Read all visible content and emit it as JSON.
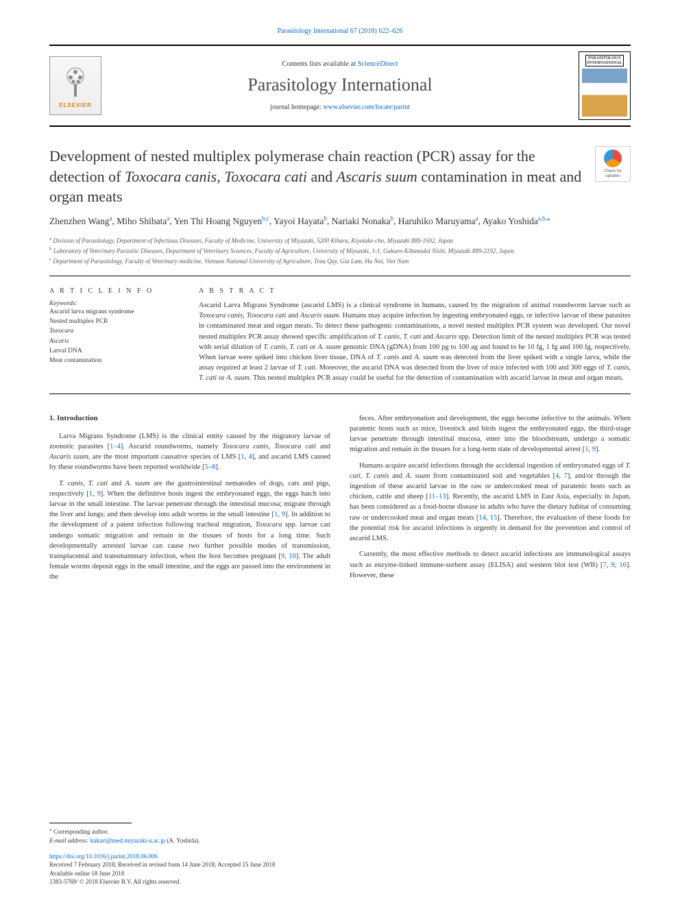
{
  "topRef": {
    "journal": "Parasitology International 67 (2018) 622–626",
    "href": "#"
  },
  "header": {
    "contentsPrefix": "Contents lists available at ",
    "contentsLink": "ScienceDirect",
    "journalName": "Parasitology International",
    "homepagePrefix": "journal homepage: ",
    "homepageLink": "www.elsevier.com/locate/parint",
    "elsevierLabel": "ELSEVIER",
    "coverBadgeTop": "PARASITOLOGY",
    "coverBadgeBottom": "INTERNATIONAL"
  },
  "checkUpdates": {
    "line1": "Check for",
    "line2": "updates"
  },
  "title": {
    "pre": "Development of nested multiplex polymerase chain reaction (PCR) assay for the detection of ",
    "em1": "Toxocara canis",
    "mid1": ", ",
    "em2": "Toxocara cati",
    "mid2": " and ",
    "em3": "Ascaris suum",
    "post": " contamination in meat and organ meats"
  },
  "authors": {
    "list": [
      {
        "name": "Zhenzhen Wang",
        "aff": "a"
      },
      {
        "name": "Miho Shibata",
        "aff": "a"
      },
      {
        "name": "Yen Thi Hoang Nguyen",
        "aff": "b,c"
      },
      {
        "name": "Yayoi Hayata",
        "aff": "b"
      },
      {
        "name": "Nariaki Nonaka",
        "aff": "b"
      },
      {
        "name": "Haruhiko Maruyama",
        "aff": "a"
      },
      {
        "name": "Ayako Yoshida",
        "aff": "a,b,",
        "corr": true
      }
    ],
    "corrMark": "⁎"
  },
  "affiliations": [
    {
      "sup": "a",
      "text": "Division of Parasitology, Department of Infectious Diseases, Faculty of Medicine, University of Miyazaki, 5200 Kihara, Kiyotake-cho, Miyazaki 889-1692, Japan"
    },
    {
      "sup": "b",
      "text": "Laboratory of Veterinary Parasitic Diseases, Department of Veterinary Sciences, Faculty of Agriculture, University of Miyazaki, 1-1, Gakuen-Kibanadai Nishi, Miyazaki 889-2192, Japan"
    },
    {
      "sup": "c",
      "text": "Department of Parasitology, Faculty of Veterinary medicine, Vietnam National University of Agriculture, Trau Quy, Gia Lam, Ha Noi, Viet Nam"
    }
  ],
  "articleInfo": {
    "heading": "A R T I C L E  I N F O",
    "keywordsLabel": "Keywords:",
    "keywords": [
      "Ascarid larva migrans syndrome",
      "Nested multiplex PCR",
      "<em>Toxocara</em>",
      "<em>Ascaris</em>",
      "Larval DNA",
      "Meat contamination"
    ]
  },
  "abstract": {
    "heading": "A B S T R A C T",
    "text": "Ascarid Larva Migrans Syndrome (ascarid LMS) is a clinical syndrome in humans, caused by the migration of animal roundworm larvae such as <em>Toxocara canis</em>, <em>Toxocara cati</em> and <em>Ascaris suum</em>. Humans may acquire infection by ingesting embryonated eggs, or infective larvae of these parasites in contaminated meat and organ meats. To detect these pathogenic contaminations, a novel nested multiplex PCR system was developed. Our novel nested multiplex PCR assay showed specific amplification of <em>T. canis</em>, <em>T. cati</em> and <em>Ascaris</em> spp. Detection limit of the nested multiplex PCR was tested with serial dilution of <em>T. canis</em>, <em>T. cati</em> or <em>A. suum</em> genomic DNA (gDNA) from 100 pg to 100 ag and found to be 10 fg, 1 fg and 100 fg, respectively. When larvae were spiked into chicken liver tissue, DNA of <em>T. canis</em> and <em>A. suum</em> was detected from the liver spiked with a single larva, while the assay required at least 2 larvae of <em>T. cati</em>. Moreover, the ascarid DNA was detected from the liver of mice infected with 100 and 300 eggs of <em>T. canis</em>, <em>T. cati</em> or <em>A. suum</em>. This nested multiplex PCR assay could be useful for the detection of contamination with ascarid larvae in meat and organ meats."
  },
  "body": {
    "introHeading": "1. Introduction",
    "leftParas": [
      "Larva Migrans Syndrome (LMS) is the clinical entity caused by the migratory larvae of zoonotic parasites [<a class=\"ref\" href=\"#\">1–4</a>]. Ascarid roundworms, namely <em>Toxocara canis</em>, <em>Toxocara cati</em> and <em>Ascaris suum</em>, are the most important causative species of LMS [<a class=\"ref\" href=\"#\">1</a>, <a class=\"ref\" href=\"#\">4</a>], and ascarid LMS caused by these roundworms have been reported worldwide [<a class=\"ref\" href=\"#\">5–8</a>].",
      "<em>T. canis</em>, <em>T. cati</em> and <em>A. suum</em> are the gastrointestinal nematodes of dogs, cats and pigs, respectively [<a class=\"ref\" href=\"#\">1</a>, <a class=\"ref\" href=\"#\">9</a>]. When the definitive hosts ingest the embryonated eggs, the eggs hatch into larvae in the small intestine. The larvae penetrate through the intestinal mucosa; migrate through the liver and lungs; and then develop into adult worms in the small intestine [<a class=\"ref\" href=\"#\">1</a>, <a class=\"ref\" href=\"#\">9</a>]. In addition to the development of a patent infection following tracheal migration, <em>Toxocara</em> spp. larvae can undergo somatic migration and remain in the tissues of hosts for a long time. Such developmentally arrested larvae can cause two further possible modes of transmission, transplacental and transmammary infection, when the host becomes pregnant [<a class=\"ref\" href=\"#\">9</a>, <a class=\"ref\" href=\"#\">10</a>]. The adult female worms deposit eggs in the small intestine, and the eggs are passed into the environment in the"
    ],
    "rightParas": [
      "feces. After embryonation and development, the eggs become infective to the animals. When paratenic hosts such as mice, livestock and birds ingest the embryonated eggs, the third-stage larvae penetrate through intestinal mucosa, enter into the bloodstream, undergo a somatic migration and remain in the tissues for a long-term state of developmental arrest [<a class=\"ref\" href=\"#\">1</a>, <a class=\"ref\" href=\"#\">9</a>].",
      "Humans acquire ascarid infections through the accidental ingestion of embryonated eggs of <em>T. cati</em>, <em>T. canis</em> and <em>A. suum</em> from contaminated soil and vegetables [<a class=\"ref\" href=\"#\">4</a>, <a class=\"ref\" href=\"#\">7</a>], and/or through the ingestion of these ascarid larvae in the raw or undercooked meat of paratenic hosts such as chicken, cattle and sheep [<a class=\"ref\" href=\"#\">11–13</a>]. Recently, the ascarid LMS in East Asia, especially in Japan, has been considered as a food-borne disease in adults who have the dietary habitat of consuming raw or undercooked meat and organ meats [<a class=\"ref\" href=\"#\">14</a>, <a class=\"ref\" href=\"#\">15</a>]. Therefore, the evaluation of these foods for the potential risk for ascarid infections is urgently in demand for the prevention and control of ascarid LMS.",
      "Currently, the most effective methods to detect ascarid infections are immunological assays such as enzyme-linked immune-sorbent assay (ELISA) and western blot test (WB) [<a class=\"ref\" href=\"#\">7</a>, <a class=\"ref\" href=\"#\">9</a>, <a class=\"ref\" href=\"#\">16</a>]. However, these"
    ]
  },
  "footnote": {
    "corrMark": "⁎",
    "corrText": "Corresponding author.",
    "emailLabel": "E-mail address:",
    "email": "kukuri@med.miyazaki-u.ac.jp",
    "emailAuthor": "(A. Yoshida)."
  },
  "doiBlock": {
    "doi": "https://doi.org/10.1016/j.parint.2018.06.006",
    "received": "Received 7 February 2018; Received in revised form 14 June 2018; Accepted 15 June 2018",
    "available": "Available online 18 June 2018",
    "copyright": "1383-5769/ © 2018 Elsevier B.V. All rights reserved."
  },
  "colors": {
    "link": "#0066cc",
    "text": "#333333",
    "orange": "#d97b00"
  },
  "typography": {
    "title_fontsize": 22,
    "journal_fontsize": 26,
    "body_fontsize": 10.5,
    "abstract_fontsize": 10.5,
    "author_fontsize": 13.5,
    "affil_fontsize": 9,
    "footer_fontsize": 9
  }
}
